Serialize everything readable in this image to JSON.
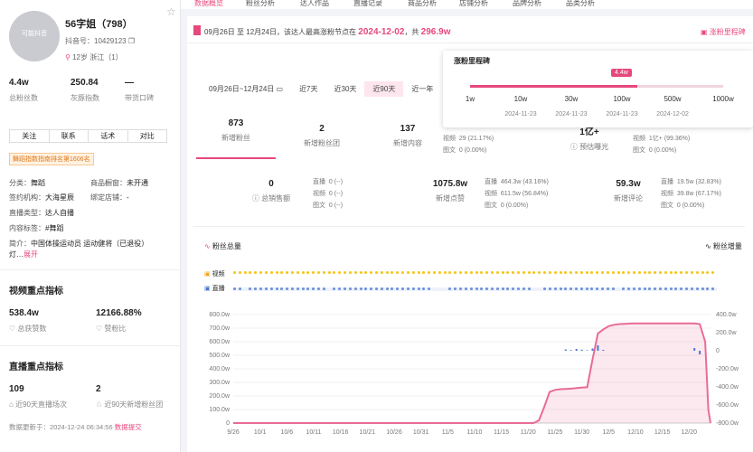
{
  "profile": {
    "avatar_text": "可能抖音",
    "name": "56字姐（798）",
    "douyin_id": "抖音号：10429123",
    "location": "12岁  浙江（1）",
    "metrics": [
      {
        "value": "4.4w",
        "label": "总粉丝数"
      },
      {
        "value": "250.84",
        "label": "灰豚指数"
      },
      {
        "value": "—",
        "label": "带货口碑"
      }
    ],
    "buttons": [
      "关注",
      "联系",
      "话术",
      "对比"
    ],
    "tag": "舞蹈指数指南排名第1606名",
    "info": [
      {
        "k": "分类：",
        "v": "舞蹈",
        "k2": "商品橱窗：",
        "v2": "未开通"
      },
      {
        "k": "签约机构：",
        "v": "大海星辰",
        "k2": "绑定店铺：",
        "v2": "-"
      },
      {
        "k": "直播类型：",
        "v": "达人自播"
      },
      {
        "k": "内容标签：",
        "v": "#舞蹈"
      }
    ],
    "intro_label": "简介：",
    "intro": "中国体操运动员 运动健将（已退役）",
    "intro2": "灯…",
    "expand": "展开"
  },
  "video_section": {
    "title": "视频重点指标",
    "items": [
      {
        "value": "538.4w",
        "label": "总获赞数"
      },
      {
        "value": "12166.88%",
        "label": "赞粉比"
      }
    ]
  },
  "live_section": {
    "title": "直播重点指标",
    "items": [
      {
        "value": "109",
        "label": "近90天直播场次"
      },
      {
        "value": "2",
        "label": "近90天新增粉丝团"
      }
    ]
  },
  "update": {
    "text": "数据更新于：2024-12-24 06:34:56",
    "link": "数据提交"
  },
  "nav": [
    "数据概览",
    "粉丝分析",
    "达人作品",
    "直播记录",
    "商品分析",
    "店铺分析",
    "品牌分析",
    "品类分析"
  ],
  "notice": {
    "text": "09月26日 至 12月24日，该达人最高涨粉节点在",
    "date": "2024-12-02",
    "sep": "，共",
    "amount": "296.9w",
    "right": "涨粉里程碑"
  },
  "range": {
    "date": "09月26日~12月24日",
    "options": [
      "近7天",
      "近30天",
      "近90天",
      "近一年"
    ],
    "active": "近90天"
  },
  "popup": {
    "title": "涨粉里程碑",
    "badge": "4.4w",
    "milestones": [
      "1w",
      "10w",
      "30w",
      "100w",
      "500w",
      "1000w"
    ],
    "dates": [
      "",
      "2024-11-23",
      "2024-11-23",
      "2024-11-23",
      "2024-12-02",
      ""
    ],
    "progress_fraction": 0.66
  },
  "cards_row1": [
    {
      "value": "873",
      "label": "新增粉丝",
      "rows": []
    },
    {
      "value": "2",
      "label": "新增粉丝团",
      "rows": []
    },
    {
      "value": "137",
      "label": "新增内容",
      "rows": [
        {
          "k": "视频",
          "v": "29 (21.17%)"
        },
        {
          "k": "图文",
          "v": "0 (0.00%)"
        }
      ]
    },
    {
      "value": "1亿+",
      "label": "预估曝光",
      "rows": [
        {
          "k": "视频",
          "v": "1亿+ (99.36%)"
        },
        {
          "k": "图文",
          "v": "0 (0.00%)"
        }
      ]
    }
  ],
  "cards_row2": [
    {
      "value": "0",
      "label": "总销售额",
      "rows": [
        {
          "k": "直播",
          "v": "0 (--)"
        },
        {
          "k": "视频",
          "v": "0 (--)"
        },
        {
          "k": "图文",
          "v": "0 (--)"
        }
      ]
    },
    {
      "value": "1075.8w",
      "label": "新增点赞",
      "rows": [
        {
          "k": "直播",
          "v": "464.3w (43.16%)"
        },
        {
          "k": "视频",
          "v": "611.5w (56.84%)"
        },
        {
          "k": "图文",
          "v": "0 (0.00%)"
        }
      ]
    },
    {
      "value": "59.3w",
      "label": "新增评论",
      "rows": [
        {
          "k": "直播",
          "v": "19.5w (32.83%)"
        },
        {
          "k": "视频",
          "v": "39.8w (67.17%)"
        },
        {
          "k": "图文",
          "v": "0 (0.00%)"
        }
      ]
    }
  ],
  "chart_header": {
    "left": "粉丝总量",
    "right": "粉丝增量"
  },
  "legend_rows": [
    {
      "label": "视频",
      "color": "#f5c518"
    },
    {
      "label": "直播",
      "color": "#6b8fd6"
    }
  ],
  "colors": {
    "accent": "#e6497b",
    "line": "#e86c98",
    "bar": "#4a78d0"
  },
  "chart_data": {
    "type": "line",
    "x_ticks": [
      "9/26",
      "10/1",
      "10/6",
      "10/11",
      "10/16",
      "10/21",
      "10/26",
      "10/31",
      "11/5",
      "11/10",
      "11/15",
      "11/20",
      "11/25",
      "11/30",
      "12/5",
      "12/10",
      "12/15",
      "12/20"
    ],
    "y_left": [
      "800.0w",
      "700.0w",
      "600.0w",
      "500.0w",
      "400.0w",
      "300.0w",
      "200.0w",
      "100.0w",
      "0"
    ],
    "y_right": [
      "400.0w",
      "200.0w",
      "0",
      "-200.0w",
      "-400.0w",
      "-600.0w",
      "-800.0w"
    ],
    "ylim_left": [
      0,
      800
    ],
    "ylim_right": [
      -800,
      400
    ],
    "series": [
      {
        "name": "粉丝总量",
        "values_x": [
          0,
          56,
          57,
          58,
          59,
          60,
          61,
          62,
          63,
          64,
          65,
          66,
          67,
          68,
          69,
          70,
          71,
          72,
          73,
          74,
          75,
          76,
          77,
          78,
          79,
          80,
          81,
          82,
          83,
          84,
          85,
          86,
          87,
          88,
          88.6,
          89
        ],
        "values_y": [
          0,
          0,
          20,
          120,
          230,
          245,
          250,
          252,
          254,
          258,
          262,
          265,
          470,
          660,
          690,
          715,
          725,
          730,
          732,
          734,
          735,
          735,
          735,
          735,
          735,
          735,
          735,
          735,
          735,
          735,
          735,
          735,
          730,
          600,
          100,
          0
        ]
      },
      {
        "name": "粉丝增量",
        "bars_x": [
          62,
          63,
          64,
          65,
          66,
          67,
          68,
          69,
          86,
          87
        ],
        "bars_y": [
          15,
          8,
          20,
          12,
          6,
          25,
          60,
          10,
          30,
          -40
        ]
      }
    ]
  }
}
